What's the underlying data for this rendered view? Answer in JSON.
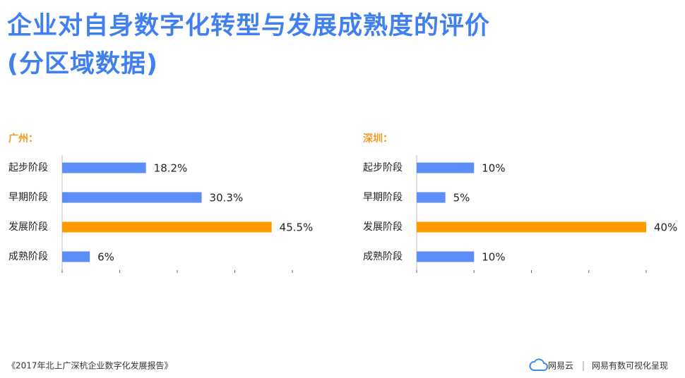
{
  "header": {
    "title": [
      "企业对自身数字化转型与发展成熟度的评价",
      "(分区域数据)"
    ]
  },
  "chart_data": [
    {
      "type": "bar",
      "orientation": "horizontal",
      "title": "广州：",
      "categories": [
        "起步阶段",
        "早期阶段",
        "发展阶段",
        "成熟阶段"
      ],
      "values": [
        18.2,
        30.3,
        45.5,
        6
      ],
      "value_labels": [
        "18.2%",
        "30.3%",
        "45.5%",
        "6%"
      ],
      "colors": [
        "#5b8ef6",
        "#5b8ef6",
        "#ff9a00",
        "#5b8ef6"
      ],
      "xlim": [
        0,
        50
      ],
      "xticks": [
        0,
        12.5,
        25,
        37.5,
        50
      ]
    },
    {
      "type": "bar",
      "orientation": "horizontal",
      "title": "深圳：",
      "categories": [
        "起步阶段",
        "早期阶段",
        "发展阶段",
        "成熟阶段"
      ],
      "values": [
        10,
        5,
        40,
        10
      ],
      "value_labels": [
        "10%",
        "5%",
        "40%",
        "10%"
      ],
      "colors": [
        "#5b8ef6",
        "#5b8ef6",
        "#ff9a00",
        "#5b8ef6"
      ],
      "xlim": [
        0,
        40
      ],
      "xticks": [
        0,
        10,
        20,
        30,
        40
      ]
    }
  ],
  "footer": {
    "source": "《2017年北上广深杭企业数字化发展报告》",
    "brand": "网易云",
    "credit": "网易有数可视化呈现"
  }
}
